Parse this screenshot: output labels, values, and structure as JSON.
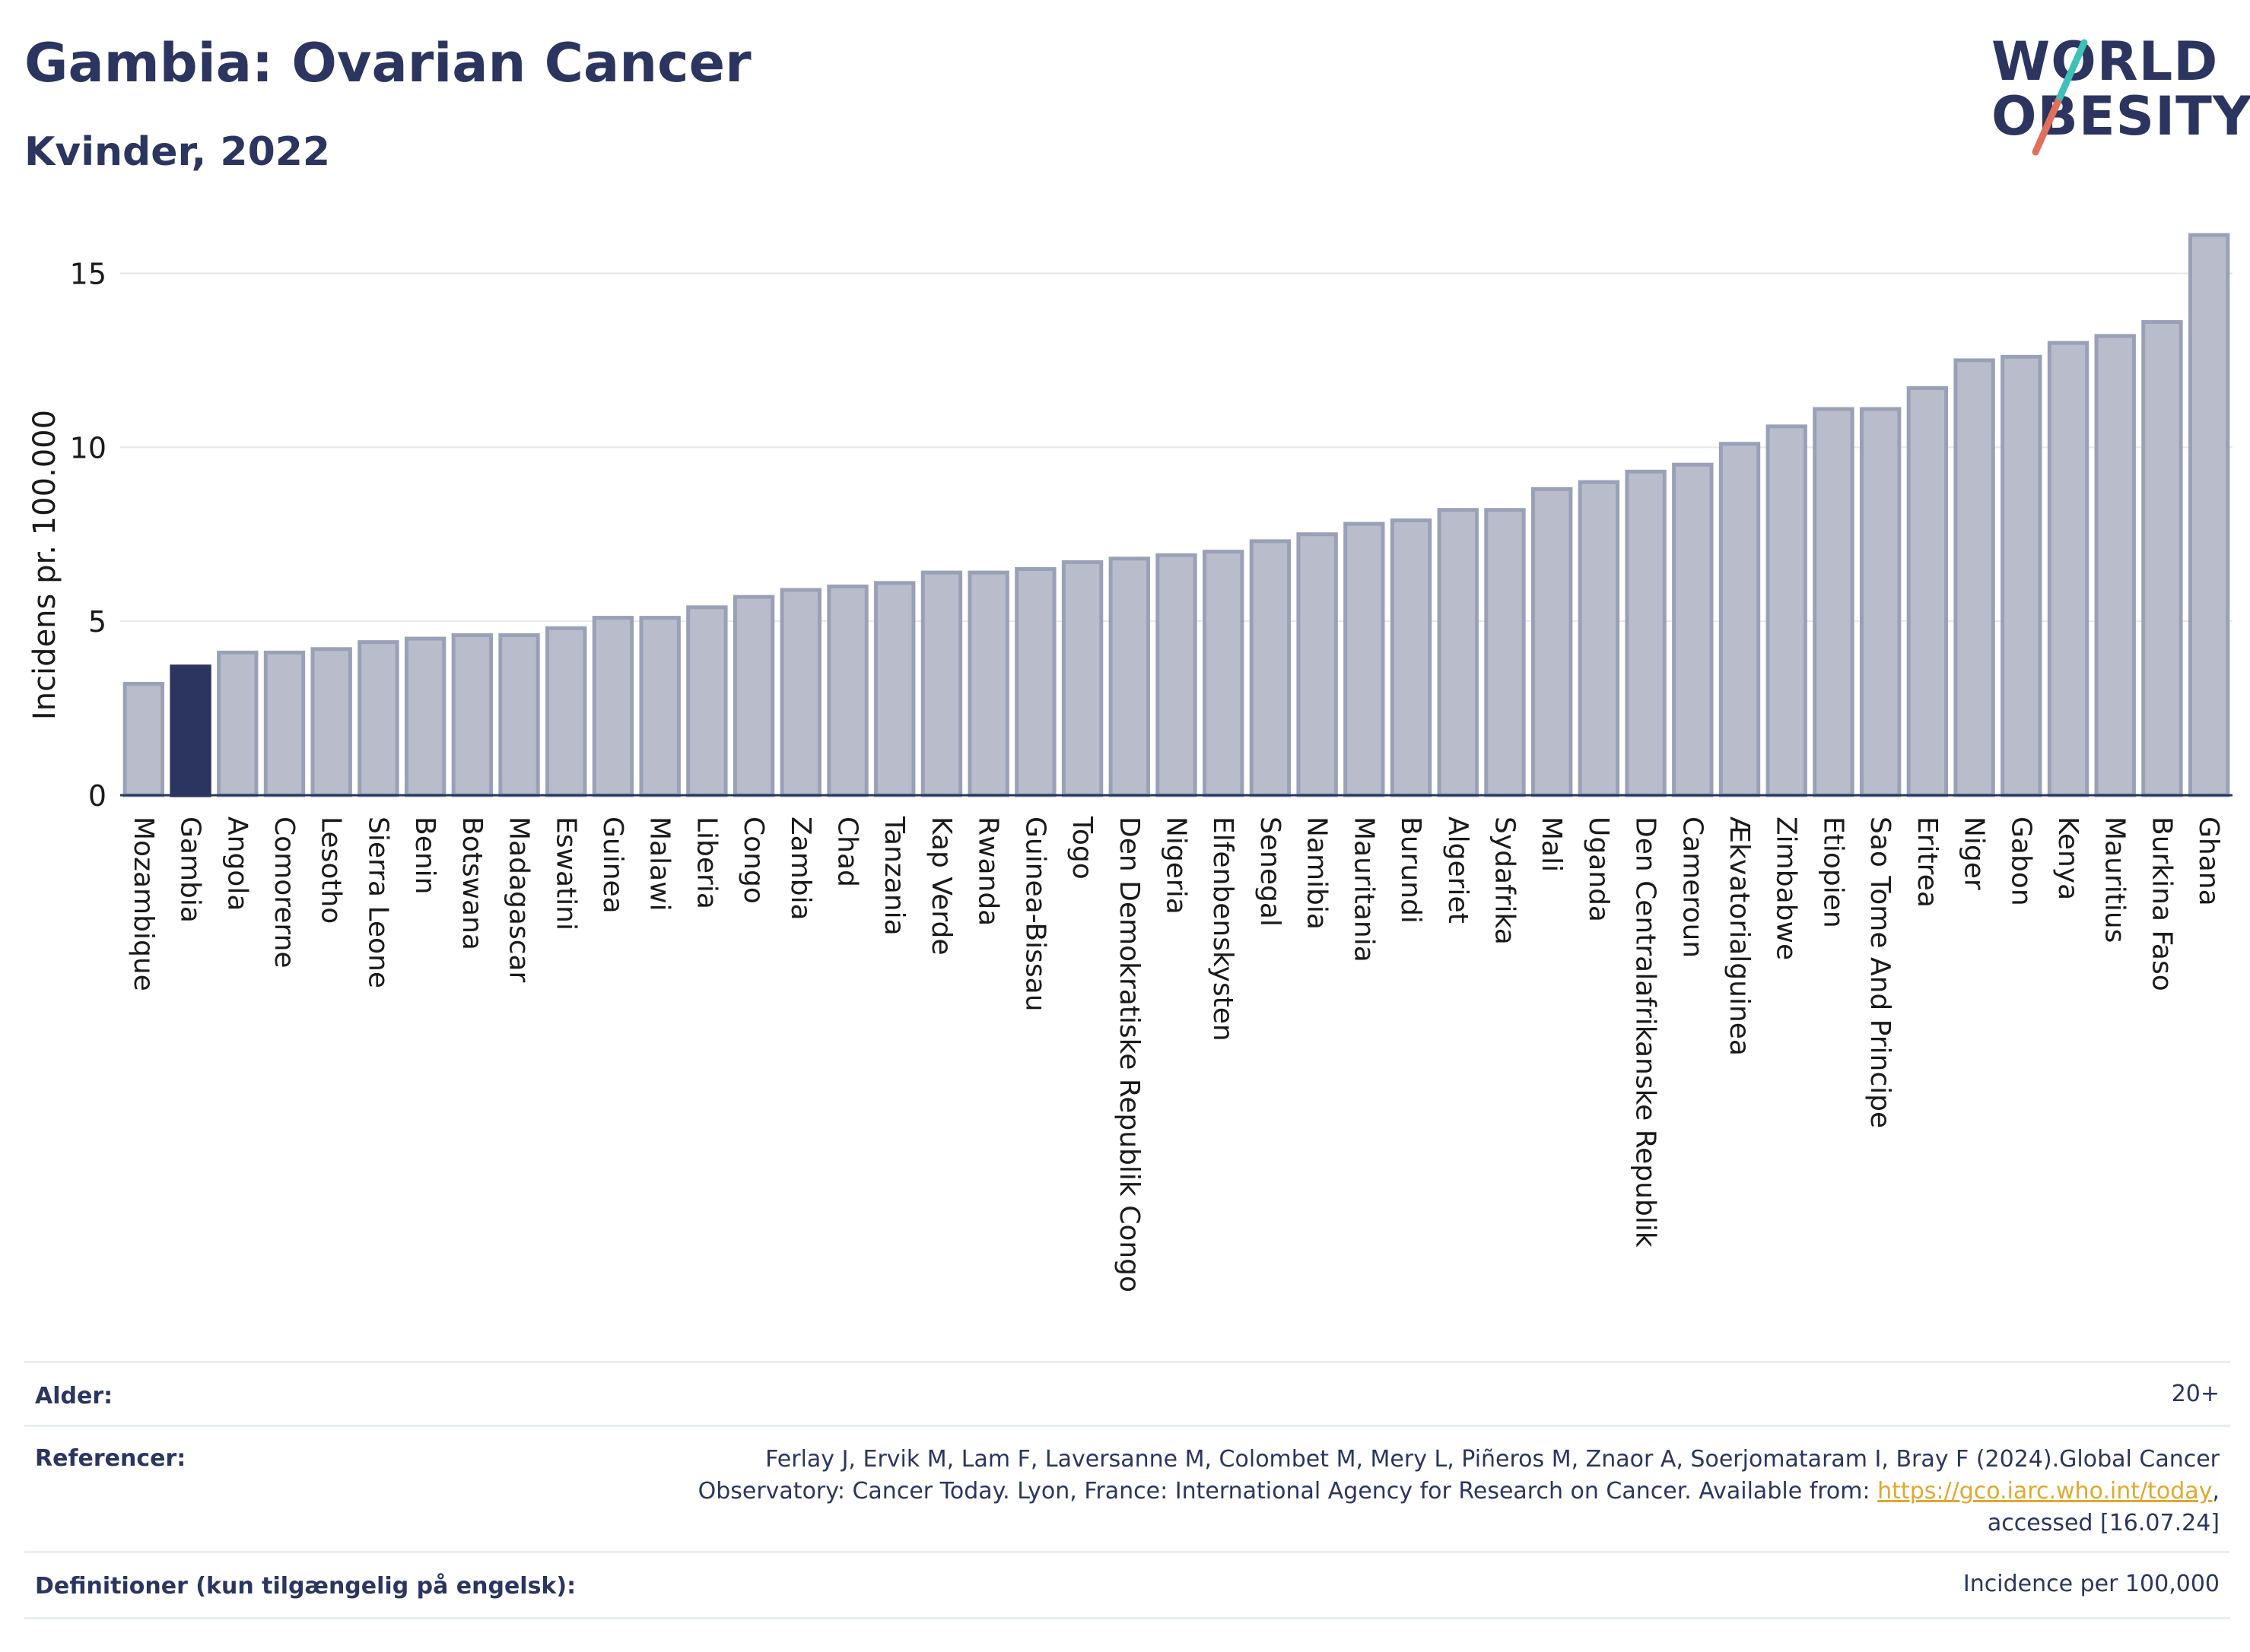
{
  "header": {
    "title": "Gambia: Ovarian Cancer",
    "subtitle": "Kvinder, 2022",
    "logo_line1": "WORLD",
    "logo_line2": "OBESITY"
  },
  "colors": {
    "bar": "#b9bdcb",
    "bar_stroke": "#9aa0b6",
    "highlight": "#2b3560",
    "grid": "#e6e8ec",
    "text": "#2b3560",
    "logo_slash_teal": "#3ec1b9",
    "logo_slash_coral": "#e0705c"
  },
  "chart_data": {
    "type": "bar",
    "title": "",
    "ylabel": "Incidens pr. 100.000",
    "xlabel": "",
    "ylim": [
      0,
      16.3
    ],
    "yticks": [
      0,
      5,
      10,
      15
    ],
    "highlight": "Gambia",
    "categories": [
      "Mozambique",
      "Gambia",
      "Angola",
      "Comorerne",
      "Lesotho",
      "Sierra Leone",
      "Benin",
      "Botswana",
      "Madagascar",
      "Eswatini",
      "Guinea",
      "Malawi",
      "Liberia",
      "Congo",
      "Zambia",
      "Chad",
      "Tanzania",
      "Kap Verde",
      "Rwanda",
      "Guinea-Bissau",
      "Togo",
      "Den Demokratiske Republik Congo",
      "Nigeria",
      "Elfenbenskysten",
      "Senegal",
      "Namibia",
      "Mauritania",
      "Burundi",
      "Algeriet",
      "Sydafrika",
      "Mali",
      "Uganda",
      "Den Centralafrikanske Republik",
      "Cameroun",
      "Ækvatorialguinea",
      "Zimbabwe",
      "Etiopien",
      "Sao Tome And Principe",
      "Eritrea",
      "Niger",
      "Gabon",
      "Kenya",
      "Mauritius",
      "Burkina Faso",
      "Ghana"
    ],
    "values": [
      3.2,
      3.7,
      4.1,
      4.1,
      4.2,
      4.4,
      4.5,
      4.6,
      4.6,
      4.8,
      5.1,
      5.1,
      5.4,
      5.7,
      5.9,
      6.0,
      6.1,
      6.4,
      6.4,
      6.5,
      6.7,
      6.8,
      6.9,
      7.0,
      7.3,
      7.5,
      7.8,
      7.9,
      8.2,
      8.2,
      8.8,
      9.0,
      9.3,
      9.5,
      10.1,
      10.6,
      11.1,
      11.1,
      11.7,
      12.5,
      12.6,
      13.0,
      13.2,
      13.6,
      16.1
    ]
  },
  "footer": {
    "age_label": "Alder:",
    "age_value": "20+",
    "ref_label": "Referencer:",
    "ref_line1": "Ferlay J, Ervik M, Lam F, Laversanne M, Colombet M, Mery L, Piñeros M, Znaor A, Soerjomataram I, Bray F (2024).Global Cancer",
    "ref_line2": "Observatory: Cancer Today. Lyon, France: International Agency for Research on Cancer. Available from: ",
    "ref_link": "https://gco.iarc.who.int/today",
    "ref_line2_end": ",",
    "ref_line3": "accessed [16.07.24]",
    "def_label": "Definitioner (kun tilgængelig på engelsk):",
    "def_value": "Incidence per 100,000"
  }
}
